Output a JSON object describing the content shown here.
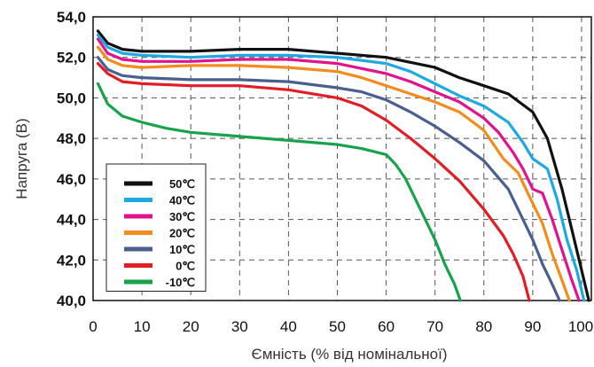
{
  "chart_data": {
    "type": "line",
    "title": "",
    "xlabel": "Ємність (% від номінальної)",
    "ylabel": "Напруга (В)",
    "xlim": [
      0,
      102
    ],
    "ylim": [
      40,
      54
    ],
    "x_ticks": [
      "0",
      "10",
      "20",
      "30",
      "40",
      "50",
      "60",
      "70",
      "80",
      "90",
      "100"
    ],
    "y_ticks": [
      "40,0",
      "42,0",
      "44,0",
      "46,0",
      "48,0",
      "50,0",
      "52,0",
      "54,0"
    ],
    "grid": "dashed",
    "legend_position": "bottom-left",
    "series": [
      {
        "name": "50℃",
        "color": "#111111",
        "points": [
          [
            1,
            53.3
          ],
          [
            3,
            52.7
          ],
          [
            6,
            52.4
          ],
          [
            10,
            52.3
          ],
          [
            20,
            52.3
          ],
          [
            30,
            52.4
          ],
          [
            40,
            52.4
          ],
          [
            50,
            52.2
          ],
          [
            60,
            52.0
          ],
          [
            70,
            51.5
          ],
          [
            75,
            51.0
          ],
          [
            80,
            50.6
          ],
          [
            85,
            50.2
          ],
          [
            90,
            49.3
          ],
          [
            93,
            48.0
          ],
          [
            96,
            45.5
          ],
          [
            98,
            43.5
          ],
          [
            100,
            41.5
          ],
          [
            101.5,
            40.0
          ]
        ]
      },
      {
        "name": "40℃",
        "color": "#1fa9e1",
        "points": [
          [
            1,
            53.1
          ],
          [
            3,
            52.5
          ],
          [
            6,
            52.2
          ],
          [
            10,
            52.1
          ],
          [
            20,
            52.0
          ],
          [
            30,
            52.1
          ],
          [
            40,
            52.1
          ],
          [
            50,
            52.0
          ],
          [
            60,
            51.7
          ],
          [
            65,
            51.3
          ],
          [
            70,
            50.7
          ],
          [
            75,
            50.1
          ],
          [
            80,
            49.6
          ],
          [
            85,
            48.8
          ],
          [
            88,
            47.8
          ],
          [
            90,
            47.0
          ],
          [
            93,
            46.5
          ],
          [
            95,
            45.0
          ],
          [
            97,
            43.0
          ],
          [
            99,
            41.5
          ],
          [
            100.5,
            40.0
          ]
        ]
      },
      {
        "name": "30℃",
        "color": "#e0138c",
        "points": [
          [
            1,
            52.9
          ],
          [
            3,
            52.2
          ],
          [
            6,
            51.9
          ],
          [
            10,
            51.8
          ],
          [
            20,
            51.8
          ],
          [
            30,
            51.9
          ],
          [
            40,
            51.9
          ],
          [
            50,
            51.7
          ],
          [
            60,
            51.2
          ],
          [
            65,
            50.8
          ],
          [
            70,
            50.3
          ],
          [
            75,
            49.8
          ],
          [
            80,
            49.0
          ],
          [
            83,
            48.3
          ],
          [
            86,
            47.3
          ],
          [
            88,
            46.5
          ],
          [
            90,
            45.5
          ],
          [
            92,
            45.3
          ],
          [
            94,
            44.0
          ],
          [
            96,
            42.5
          ],
          [
            98,
            41.0
          ],
          [
            99.5,
            40.0
          ]
        ]
      },
      {
        "name": "20℃",
        "color": "#f28c1e",
        "points": [
          [
            1,
            52.5
          ],
          [
            3,
            51.9
          ],
          [
            6,
            51.6
          ],
          [
            10,
            51.5
          ],
          [
            20,
            51.6
          ],
          [
            30,
            51.6
          ],
          [
            40,
            51.5
          ],
          [
            50,
            51.3
          ],
          [
            55,
            51.0
          ],
          [
            60,
            50.6
          ],
          [
            65,
            50.2
          ],
          [
            70,
            49.8
          ],
          [
            75,
            49.3
          ],
          [
            80,
            48.4
          ],
          [
            84,
            47.0
          ],
          [
            87,
            46.3
          ],
          [
            90,
            44.8
          ],
          [
            92,
            43.8
          ],
          [
            94,
            42.3
          ],
          [
            96,
            41.0
          ],
          [
            97.5,
            40.0
          ]
        ]
      },
      {
        "name": "10℃",
        "color": "#4a5f8e",
        "points": [
          [
            1,
            52.0
          ],
          [
            3,
            51.4
          ],
          [
            6,
            51.1
          ],
          [
            10,
            51.0
          ],
          [
            20,
            50.9
          ],
          [
            30,
            50.9
          ],
          [
            40,
            50.8
          ],
          [
            50,
            50.5
          ],
          [
            55,
            50.3
          ],
          [
            60,
            49.9
          ],
          [
            65,
            49.3
          ],
          [
            70,
            48.6
          ],
          [
            75,
            47.8
          ],
          [
            80,
            46.9
          ],
          [
            85,
            45.5
          ],
          [
            88,
            44.0
          ],
          [
            90,
            43.0
          ],
          [
            92,
            41.8
          ],
          [
            94,
            40.8
          ],
          [
            95.5,
            40.0
          ]
        ]
      },
      {
        "name": "0℃",
        "color": "#e11d25",
        "points": [
          [
            1,
            51.7
          ],
          [
            3,
            51.2
          ],
          [
            6,
            50.8
          ],
          [
            10,
            50.7
          ],
          [
            20,
            50.6
          ],
          [
            30,
            50.6
          ],
          [
            40,
            50.4
          ],
          [
            50,
            50.0
          ],
          [
            55,
            49.6
          ],
          [
            60,
            48.9
          ],
          [
            65,
            48.0
          ],
          [
            70,
            47.0
          ],
          [
            75,
            45.9
          ],
          [
            80,
            44.5
          ],
          [
            84,
            43.2
          ],
          [
            86,
            42.3
          ],
          [
            88,
            41.2
          ],
          [
            89.3,
            40.0
          ]
        ]
      },
      {
        "name": "-10℃",
        "color": "#17a24b",
        "points": [
          [
            1,
            50.7
          ],
          [
            3,
            49.7
          ],
          [
            6,
            49.1
          ],
          [
            10,
            48.8
          ],
          [
            15,
            48.5
          ],
          [
            20,
            48.3
          ],
          [
            30,
            48.1
          ],
          [
            40,
            47.9
          ],
          [
            50,
            47.7
          ],
          [
            55,
            47.5
          ],
          [
            60,
            47.2
          ],
          [
            62,
            46.7
          ],
          [
            64,
            46.0
          ],
          [
            66,
            45.0
          ],
          [
            68,
            44.0
          ],
          [
            70,
            43.0
          ],
          [
            72,
            41.8
          ],
          [
            74,
            40.8
          ],
          [
            75.2,
            40.0
          ]
        ]
      }
    ]
  }
}
